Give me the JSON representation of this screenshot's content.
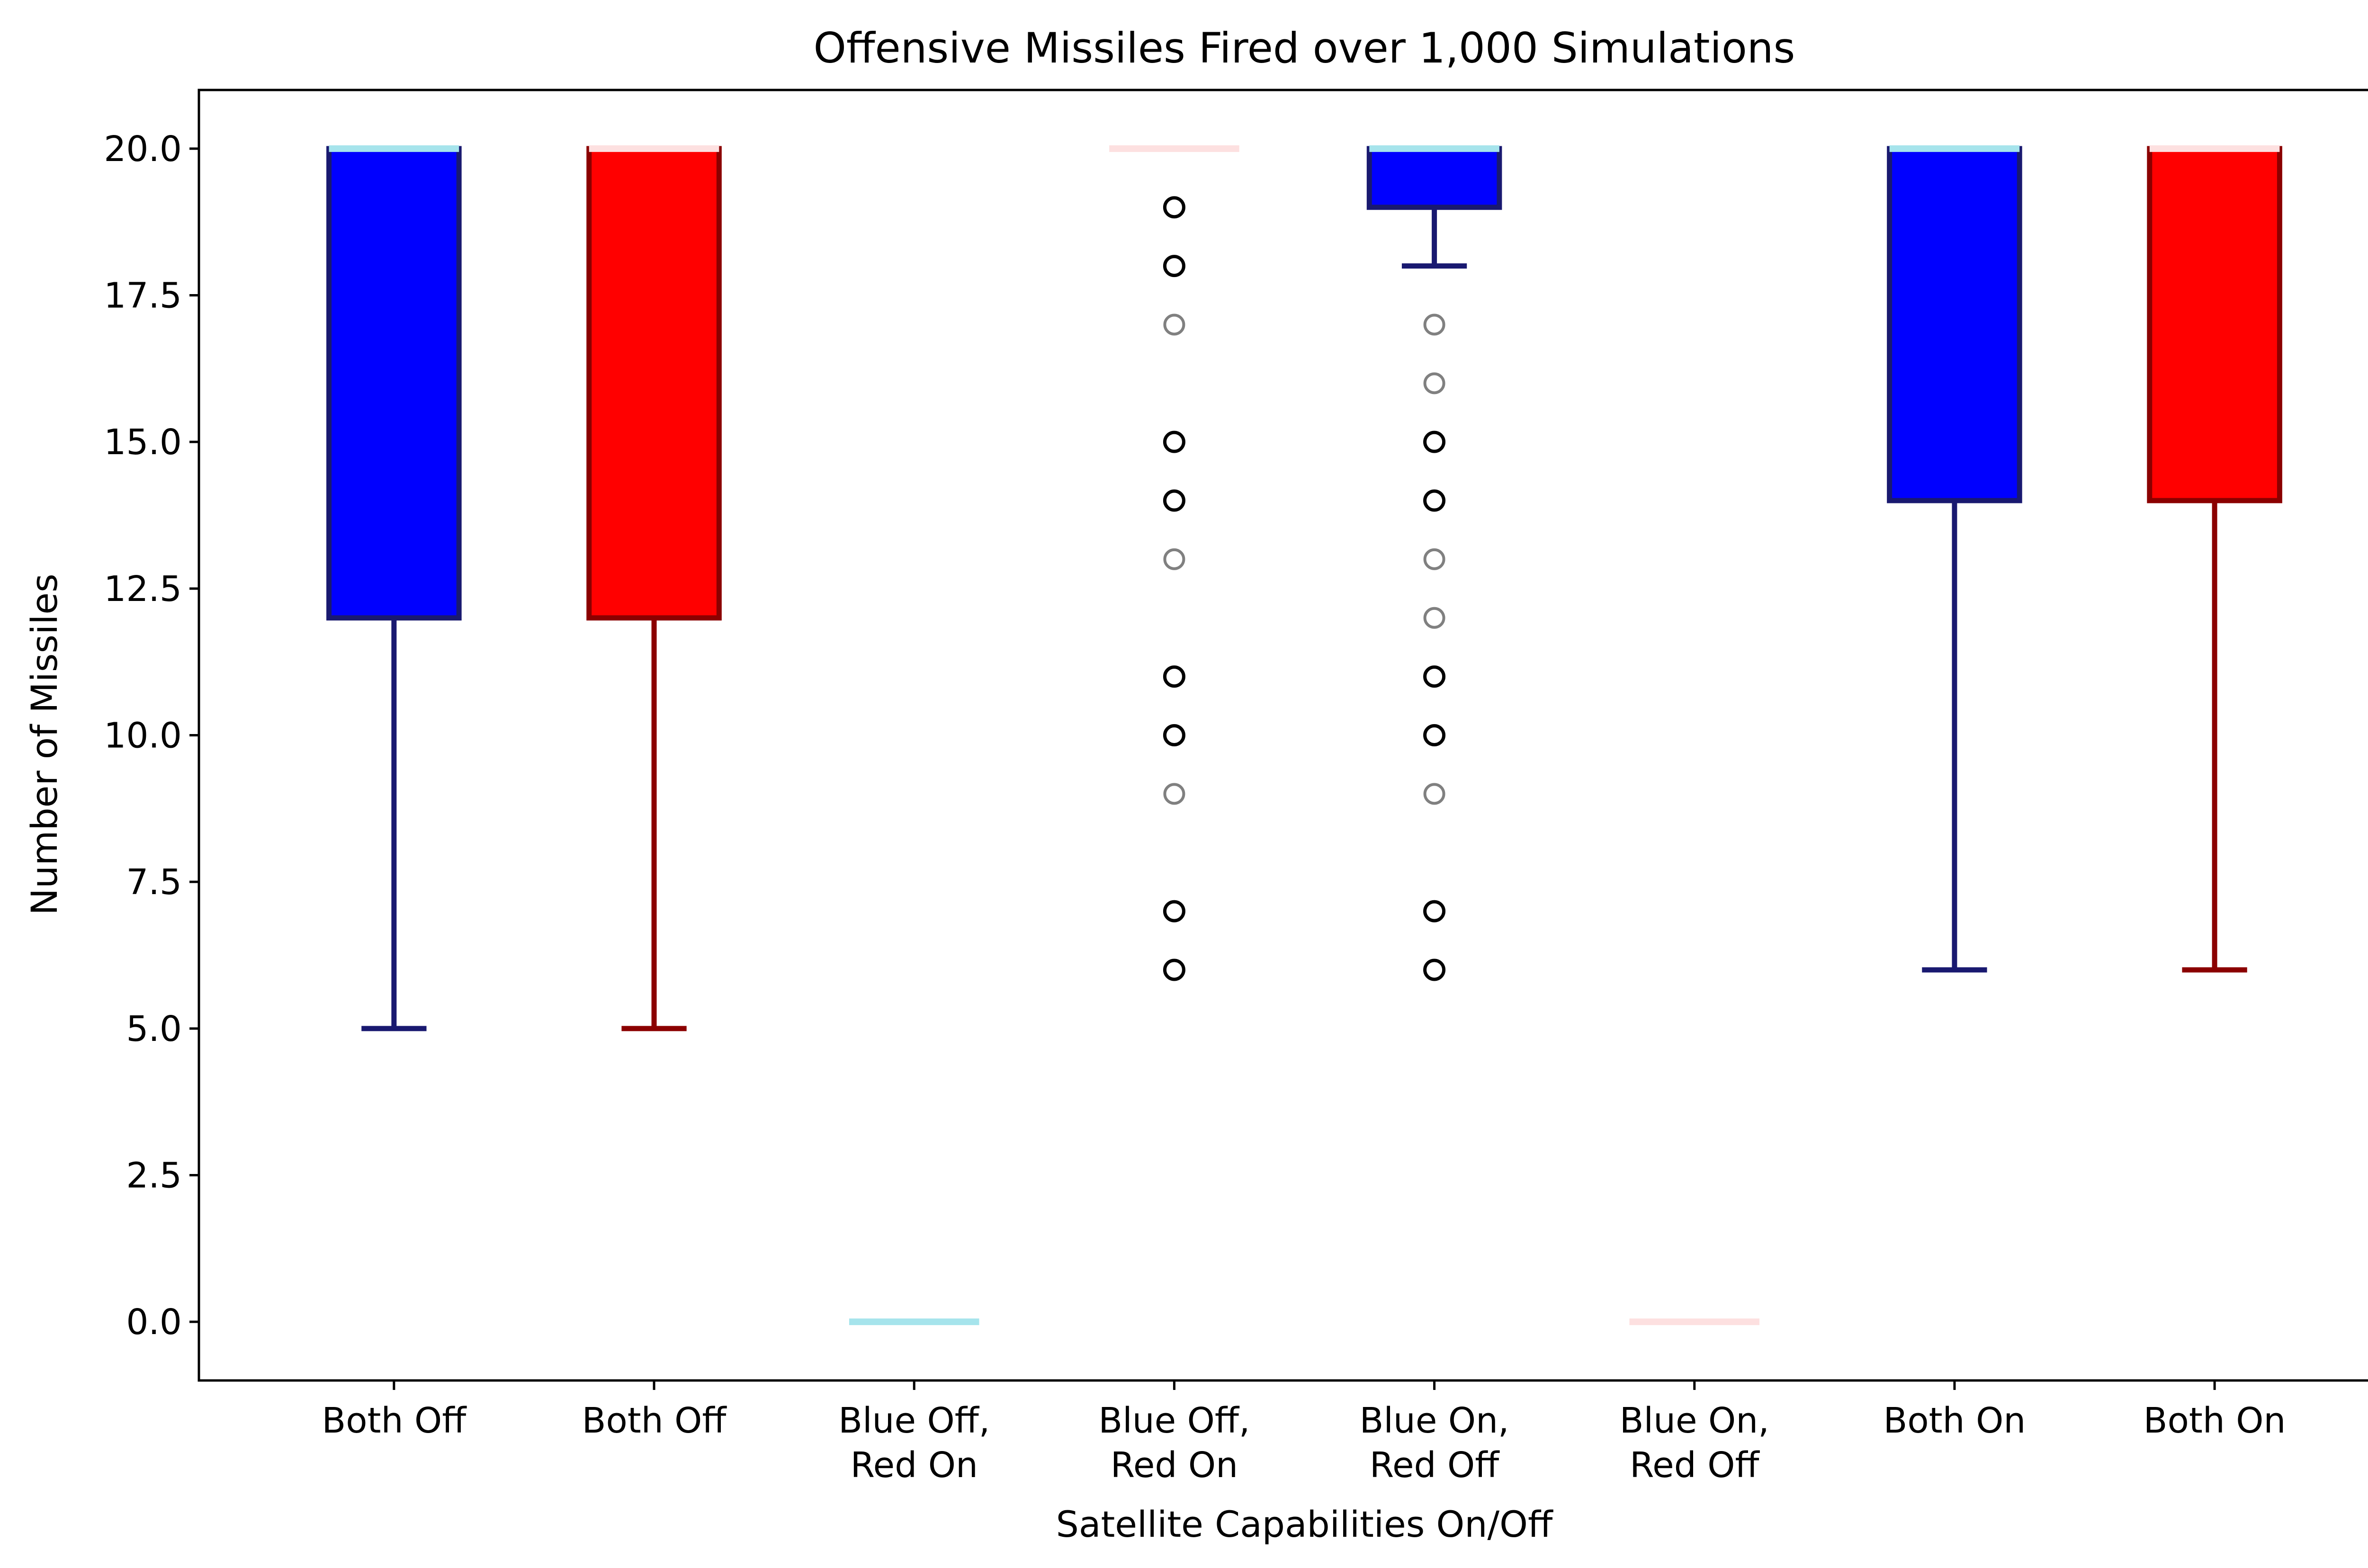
{
  "chart_data": {
    "type": "box",
    "title": "Offensive Missiles Fired over 1,000 Simulations",
    "xlabel": "Satellite Capabilities On/Off",
    "ylabel": "Number of Missiles",
    "ylim": [
      -1,
      21
    ],
    "yticks": [
      "0.0",
      "2.5",
      "5.0",
      "7.5",
      "10.0",
      "12.5",
      "15.0",
      "17.5",
      "20.0"
    ],
    "ytick_values": [
      0,
      2.5,
      5,
      7.5,
      10,
      12.5,
      15,
      17.5,
      20
    ],
    "grid": false,
    "colors": {
      "blue_box": "#0000ff",
      "blue_edge": "#191970",
      "blue_median": "#a6e4ec",
      "red_box": "#ff0000",
      "red_edge": "#8b0000",
      "red_median": "#fde0e0",
      "outlier_dark": "#000000",
      "outlier_light": "#808080"
    },
    "boxes": [
      {
        "label": [
          "Both Off"
        ],
        "team": "blue",
        "whislo": 5,
        "q1": 12,
        "med": 20,
        "q3": 20,
        "whishi": 20,
        "fliers_dark": [],
        "fliers_light": []
      },
      {
        "label": [
          "Both Off"
        ],
        "team": "red",
        "whislo": 5,
        "q1": 12,
        "med": 20,
        "q3": 20,
        "whishi": 20,
        "fliers_dark": [],
        "fliers_light": []
      },
      {
        "label": [
          "Blue Off,",
          "Red On"
        ],
        "team": "blue",
        "whislo": 0,
        "q1": 0,
        "med": 0,
        "q3": 0,
        "whishi": 0,
        "fliers_dark": [],
        "fliers_light": []
      },
      {
        "label": [
          "Blue Off,",
          "Red On"
        ],
        "team": "red",
        "whislo": 20,
        "q1": 20,
        "med": 20,
        "q3": 20,
        "whishi": 20,
        "fliers_dark": [
          19,
          18,
          15,
          14,
          11,
          10,
          7,
          6
        ],
        "fliers_light": [
          17,
          13,
          9
        ]
      },
      {
        "label": [
          "Blue On,",
          "Red Off"
        ],
        "team": "blue",
        "whislo": 18,
        "q1": 19,
        "med": 20,
        "q3": 20,
        "whishi": 20,
        "fliers_dark": [
          15,
          14,
          11,
          10,
          7,
          6
        ],
        "fliers_light": [
          17,
          16,
          13,
          12,
          9
        ]
      },
      {
        "label": [
          "Blue On,",
          "Red Off"
        ],
        "team": "red",
        "whislo": 0,
        "q1": 0,
        "med": 0,
        "q3": 0,
        "whishi": 0,
        "fliers_dark": [],
        "fliers_light": []
      },
      {
        "label": [
          "Both On"
        ],
        "team": "blue",
        "whislo": 6,
        "q1": 14,
        "med": 20,
        "q3": 20,
        "whishi": 20,
        "fliers_dark": [],
        "fliers_light": []
      },
      {
        "label": [
          "Both On"
        ],
        "team": "red",
        "whislo": 6,
        "q1": 14,
        "med": 20,
        "q3": 20,
        "whishi": 20,
        "fliers_dark": [],
        "fliers_light": []
      }
    ]
  }
}
